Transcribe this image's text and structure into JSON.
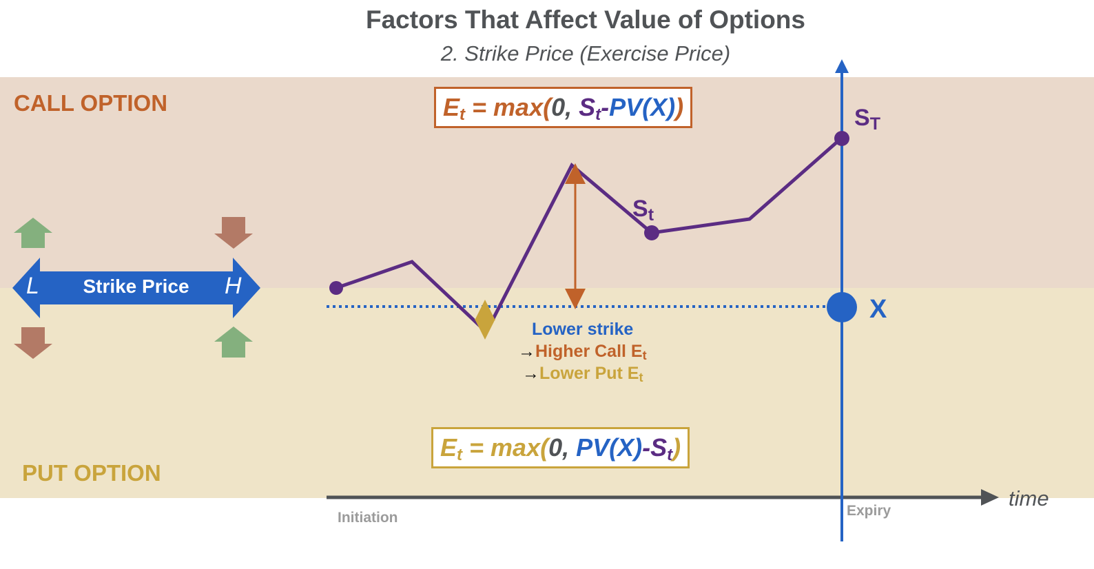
{
  "title": "Factors That Affect Value of Options",
  "subtitle": "2. Strike Price (Exercise Price)",
  "call_section": {
    "label": "CALL OPTION",
    "formula": {
      "p1": "E",
      "p1_sub": "t",
      "p2": " = max",
      "p3": "(",
      "p4": "0, ",
      "p5": "S",
      "p5_sub": "t",
      "p6": "-",
      "p7": "PV(X)",
      "p8": ")"
    }
  },
  "put_section": {
    "label": "PUT OPTION",
    "formula": {
      "p1": "E",
      "p1_sub": "t",
      "p2": " = max",
      "p3": "(",
      "p4": "0, ",
      "p5": "PV(X)",
      "p6": "-",
      "p7": "S",
      "p7_sub": "t",
      "p8": ")"
    }
  },
  "strike_price_arrow": {
    "label": "Strike Price",
    "left": "L",
    "right": "H"
  },
  "note": {
    "line1": "Lower strike",
    "line2_arrow": "→",
    "line2": "Higher Call E",
    "line2_sub": "t",
    "line3_arrow": "→",
    "line3": "Lower Put E",
    "line3_sub": "t"
  },
  "price_labels": {
    "st": "S",
    "st_sub": "t",
    "sT": "S",
    "sT_sub": "T",
    "x": "X"
  },
  "axis": {
    "time": "time",
    "start": "Initiation",
    "end": "Expiry"
  },
  "colors": {
    "call_band": "#ead9cb",
    "put_band": "#efe4c8",
    "call": "#c0622a",
    "put": "#c9a43c",
    "price_path": "#5b2c83",
    "strike": "#2563c4",
    "axis": "#505356",
    "up_arrow": "#84b07e",
    "down_arrow": "#b37a66"
  },
  "icons": [
    "up-arrow-icon",
    "down-arrow-icon",
    "double-arrow-icon"
  ]
}
